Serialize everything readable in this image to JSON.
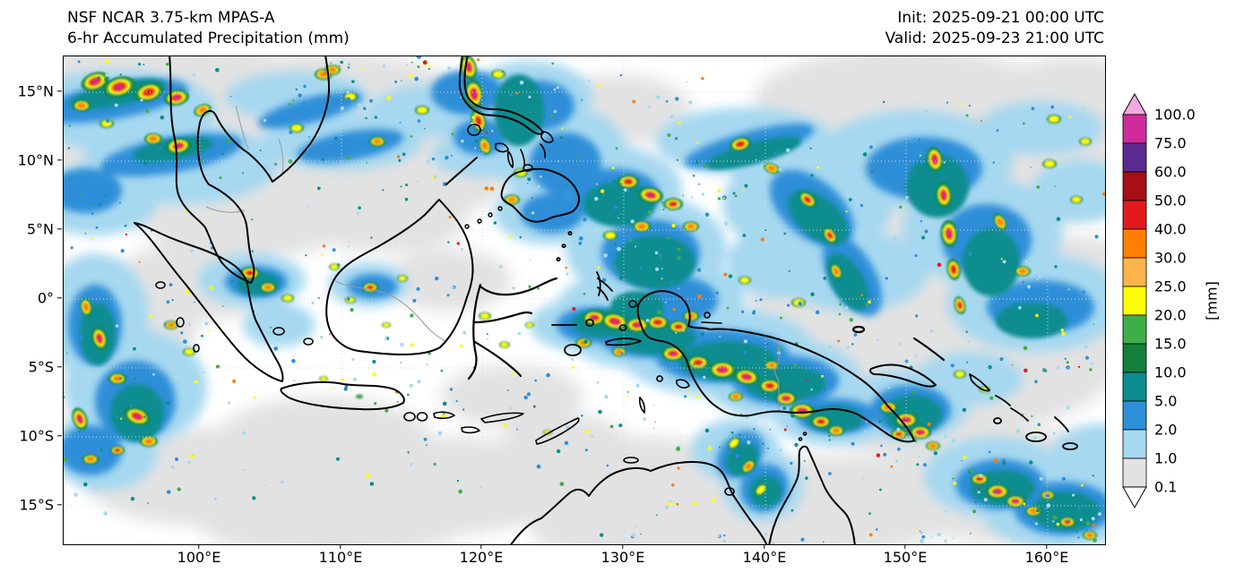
{
  "header": {
    "title_line1": "NSF NCAR 3.75-km MPAS-A",
    "title_line2": "6-hr Accumulated Precipitation (mm)",
    "init_time": "Init: 2025-09-21 00:00 UTC",
    "valid_time": "Valid: 2025-09-23 21:00 UTC"
  },
  "axes": {
    "x_tick_labels": [
      "100°E",
      "110°E",
      "120°E",
      "130°E",
      "140°E",
      "150°E",
      "160°E"
    ],
    "y_tick_labels": [
      "15°N",
      "10°N",
      "5°N",
      "0°",
      "5°S",
      "10°S",
      "15°S"
    ]
  },
  "colorbar": {
    "unit_label": "[mm]",
    "tick_labels_top_to_bottom": [
      "100.0",
      "75.0",
      "60.0",
      "50.0",
      "40.0",
      "30.0",
      "25.0",
      "20.0",
      "15.0",
      "10.0",
      "5.0",
      "2.0",
      "1.0",
      "0.1"
    ],
    "segment_colors_top_to_bottom": [
      "#cf2b9d",
      "#5b2a91",
      "#a50f15",
      "#e31a1c",
      "#ff7f00",
      "#fdb44b",
      "#ffff00",
      "#3fae49",
      "#157f3b",
      "#0c8d8f",
      "#2f8fd8",
      "#a6d8f0",
      "#e2e2e2"
    ],
    "extend_above_color": "#f5a9e1",
    "extend_below_color": "#ffffff"
  },
  "map_colors": {
    "background": "#ffffff",
    "gridline": "#d9d9d9",
    "coastline": "#000000",
    "country_border": "#999999"
  },
  "chart_data": {
    "type": "heatmap",
    "title": "6-hr Accumulated Precipitation (mm)",
    "model": "NSF NCAR 3.75-km MPAS-A",
    "init": "2025-09-21 00:00 UTC",
    "valid": "2025-09-23 21:00 UTC",
    "units": "mm",
    "x_axis_ticks_deg_east": [
      100,
      110,
      120,
      130,
      140,
      150,
      160
    ],
    "y_axis_ticks_deg_north": [
      15,
      10,
      5,
      0,
      -5,
      -10,
      -15
    ],
    "contour_levels_mm": [
      0.1,
      1.0,
      2.0,
      5.0,
      10.0,
      15.0,
      20.0,
      25.0,
      30.0,
      40.0,
      50.0,
      60.0,
      75.0,
      100.0
    ],
    "legend_position": "right",
    "grid": true
  }
}
